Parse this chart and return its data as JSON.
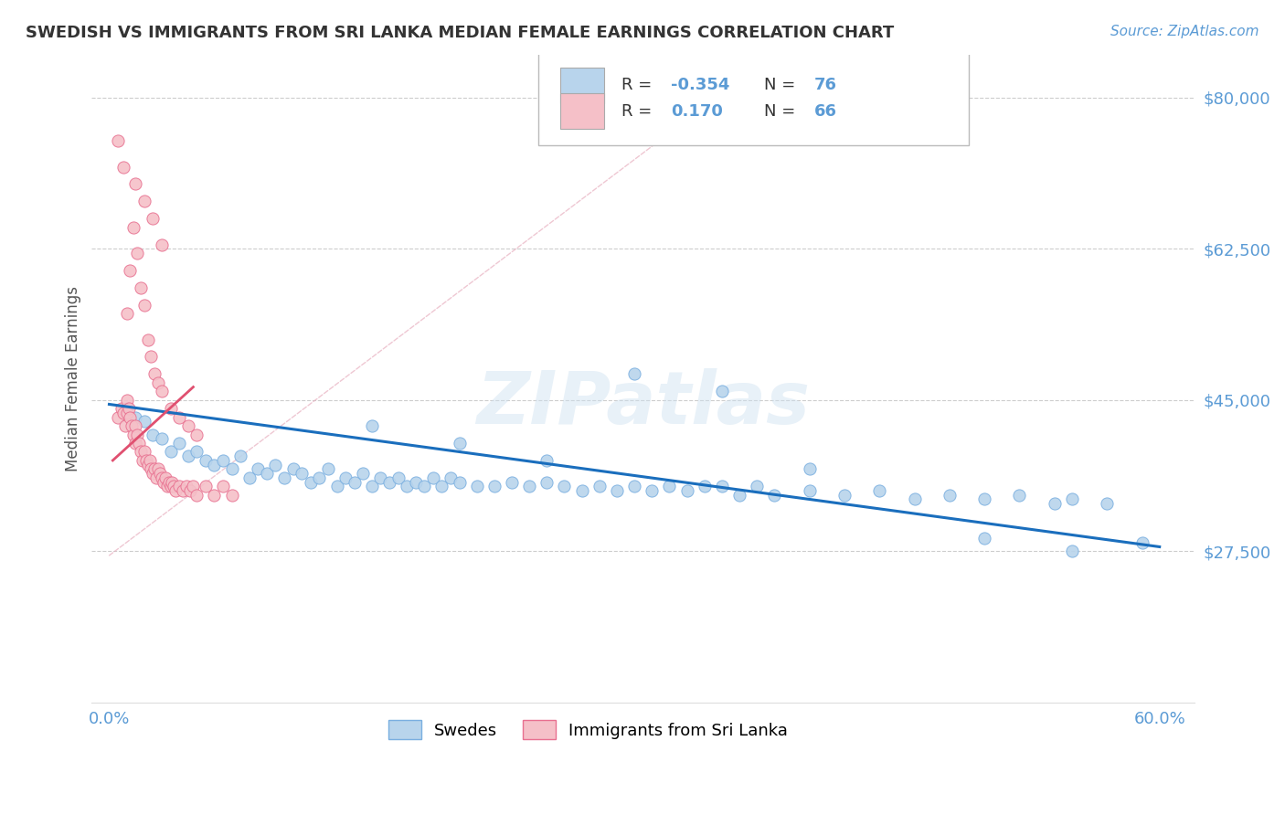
{
  "title": "SWEDISH VS IMMIGRANTS FROM SRI LANKA MEDIAN FEMALE EARNINGS CORRELATION CHART",
  "source": "Source: ZipAtlas.com",
  "ylabel": "Median Female Earnings",
  "xlim": [
    -0.01,
    0.62
  ],
  "ylim": [
    10000,
    85000
  ],
  "yticks": [
    27500,
    45000,
    62500,
    80000
  ],
  "ytick_labels": [
    "$27,500",
    "$45,000",
    "$62,500",
    "$80,000"
  ],
  "xticks": [
    0.0,
    0.1,
    0.2,
    0.3,
    0.4,
    0.5,
    0.6
  ],
  "xtick_labels": [
    "0.0%",
    "",
    "",
    "",
    "",
    "",
    "60.0%"
  ],
  "swedes_x": [
    0.01,
    0.015,
    0.02,
    0.025,
    0.03,
    0.035,
    0.04,
    0.045,
    0.05,
    0.055,
    0.06,
    0.065,
    0.07,
    0.075,
    0.08,
    0.085,
    0.09,
    0.095,
    0.1,
    0.105,
    0.11,
    0.115,
    0.12,
    0.125,
    0.13,
    0.135,
    0.14,
    0.145,
    0.15,
    0.155,
    0.16,
    0.165,
    0.17,
    0.175,
    0.18,
    0.185,
    0.19,
    0.195,
    0.2,
    0.21,
    0.22,
    0.23,
    0.24,
    0.25,
    0.26,
    0.27,
    0.28,
    0.29,
    0.3,
    0.31,
    0.32,
    0.33,
    0.34,
    0.35,
    0.36,
    0.37,
    0.38,
    0.4,
    0.42,
    0.44,
    0.46,
    0.48,
    0.5,
    0.52,
    0.54,
    0.55,
    0.57,
    0.59,
    0.3,
    0.35,
    0.2,
    0.25,
    0.15,
    0.4,
    0.5,
    0.55
  ],
  "swedes_y": [
    44000,
    43000,
    42500,
    41000,
    40500,
    39000,
    40000,
    38500,
    39000,
    38000,
    37500,
    38000,
    37000,
    38500,
    36000,
    37000,
    36500,
    37500,
    36000,
    37000,
    36500,
    35500,
    36000,
    37000,
    35000,
    36000,
    35500,
    36500,
    35000,
    36000,
    35500,
    36000,
    35000,
    35500,
    35000,
    36000,
    35000,
    36000,
    35500,
    35000,
    35000,
    35500,
    35000,
    35500,
    35000,
    34500,
    35000,
    34500,
    35000,
    34500,
    35000,
    34500,
    35000,
    35000,
    34000,
    35000,
    34000,
    34500,
    34000,
    34500,
    33500,
    34000,
    33500,
    34000,
    33000,
    33500,
    33000,
    28500,
    48000,
    46000,
    40000,
    38000,
    42000,
    37000,
    29000,
    27500
  ],
  "immigrants_x": [
    0.005,
    0.007,
    0.008,
    0.009,
    0.01,
    0.01,
    0.011,
    0.012,
    0.013,
    0.014,
    0.015,
    0.015,
    0.016,
    0.017,
    0.018,
    0.019,
    0.02,
    0.021,
    0.022,
    0.023,
    0.024,
    0.025,
    0.026,
    0.027,
    0.028,
    0.029,
    0.03,
    0.031,
    0.032,
    0.033,
    0.034,
    0.035,
    0.036,
    0.037,
    0.038,
    0.04,
    0.042,
    0.044,
    0.046,
    0.048,
    0.05,
    0.055,
    0.06,
    0.065,
    0.07,
    0.01,
    0.012,
    0.014,
    0.016,
    0.018,
    0.02,
    0.022,
    0.024,
    0.026,
    0.028,
    0.03,
    0.035,
    0.04,
    0.045,
    0.05,
    0.015,
    0.02,
    0.025,
    0.03,
    0.005,
    0.008
  ],
  "immigrants_y": [
    43000,
    44000,
    43500,
    42000,
    43500,
    45000,
    44000,
    43000,
    42000,
    41000,
    40000,
    42000,
    41000,
    40000,
    39000,
    38000,
    39000,
    38000,
    37500,
    38000,
    37000,
    36500,
    37000,
    36000,
    37000,
    36500,
    36000,
    35500,
    36000,
    35000,
    35500,
    35000,
    35500,
    35000,
    34500,
    35000,
    34500,
    35000,
    34500,
    35000,
    34000,
    35000,
    34000,
    35000,
    34000,
    55000,
    60000,
    65000,
    62000,
    58000,
    56000,
    52000,
    50000,
    48000,
    47000,
    46000,
    44000,
    43000,
    42000,
    41000,
    70000,
    68000,
    66000,
    63000,
    75000,
    72000
  ],
  "swedes_color": "#b8d4ec",
  "swedes_edgecolor": "#7aafe0",
  "immigrants_color": "#f5c0c8",
  "immigrants_edgecolor": "#e87090",
  "blue_trendline_color": "#1a6ebd",
  "pink_trendline_color": "#e05070",
  "ref_line_color": "#e8b0c0",
  "watermark": "ZIPatlas",
  "axis_color": "#5b9bd5",
  "title_color": "#333333",
  "background_color": "#ffffff",
  "grid_color": "#c8c8c8",
  "legend_blue_color": "#b8d4ec",
  "legend_pink_color": "#f5c0c8",
  "R_blue": "-0.354",
  "N_blue": "76",
  "R_pink": "0.170",
  "N_pink": "66"
}
